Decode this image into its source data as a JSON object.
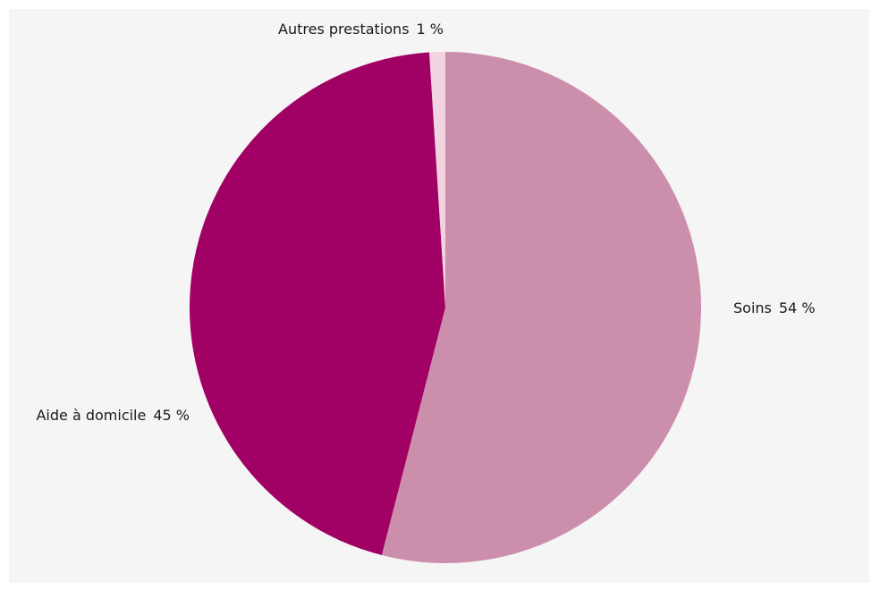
{
  "chart_data": {
    "type": "pie",
    "title": "",
    "slices": [
      {
        "label": "Soins",
        "value": 54,
        "display": "54 %",
        "color": "#cc8fab"
      },
      {
        "label": "Aide à domicile",
        "value": 45,
        "display": "45 %",
        "color": "#a10064"
      },
      {
        "label": "Autres prestations",
        "value": 1,
        "display": "1 %",
        "color": "#f2d3e0"
      }
    ],
    "unit": "%",
    "start": "12 o'clock, clockwise",
    "legend": "none (labels next to slices)"
  }
}
